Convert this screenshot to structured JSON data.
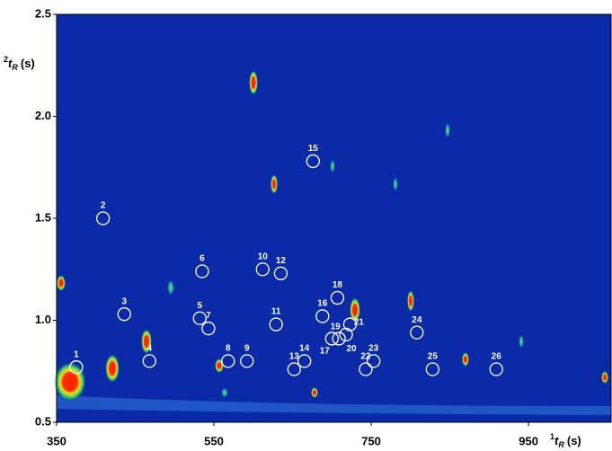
{
  "chart_data": {
    "type": "scatter",
    "x_label": {
      "sup": "1",
      "main": "t",
      "sub": "R",
      "unit": "(s)"
    },
    "y_label": {
      "sup": "2",
      "main": "t",
      "sub": "R",
      "unit": "(s)"
    },
    "labels": [
      "1",
      "2",
      "3",
      "4",
      "5",
      "6",
      "7",
      "8",
      "9",
      "10",
      "11",
      "12",
      "13",
      "14",
      "15",
      "16",
      "17",
      "18",
      "19",
      "20",
      "21",
      "22",
      "23",
      "24",
      "25",
      "26"
    ],
    "x": [
      375,
      409,
      436,
      468,
      532,
      535,
      543,
      568,
      592,
      612,
      629,
      635,
      652,
      665,
      676,
      688,
      700,
      707,
      709,
      718,
      723,
      743,
      753,
      808,
      828,
      909
    ],
    "y": [
      0.77,
      1.5,
      1.03,
      0.8,
      1.01,
      1.24,
      0.96,
      0.8,
      0.8,
      1.25,
      0.98,
      1.23,
      0.76,
      0.8,
      1.78,
      1.02,
      0.91,
      1.11,
      0.91,
      0.93,
      0.98,
      0.76,
      0.8,
      0.94,
      0.76,
      0.76
    ],
    "marker_color": "#ffffff",
    "xlim": [
      350,
      1055
    ],
    "ylim": [
      0.5,
      2.5
    ],
    "xticks": [
      350,
      550,
      750,
      950
    ],
    "yticks": [
      0.5,
      {
        "value": 1.0,
        "label": "1.0"
      },
      1.5,
      {
        "value": 2.0,
        "label": "2.0"
      },
      2.5
    ]
  }
}
